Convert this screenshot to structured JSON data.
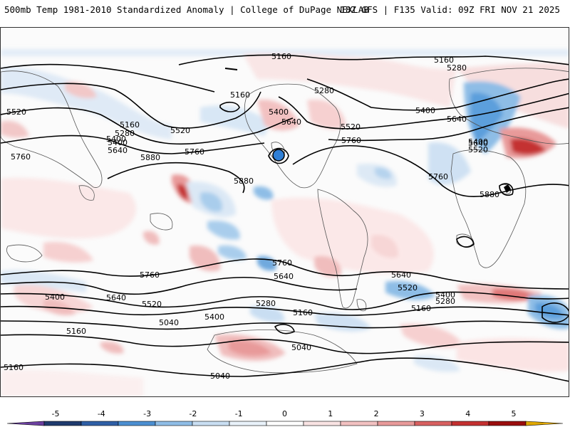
{
  "header": {
    "title_left": "500mb Temp 1981-2010 Standardized Anomaly | College of DuPage NEXLAB",
    "title_right": "18Z GFS | F135 Valid: 09Z FRI NOV 21 2025"
  },
  "contour_labels": [
    "5160",
    "5160",
    "5280",
    "5160",
    "5400",
    "5280",
    "5640",
    "5520",
    "5400",
    "5520",
    "5400",
    "5640",
    "5160",
    "5280",
    "5400",
    "5640",
    "5520",
    "5760",
    "5760",
    "5880",
    "5880",
    "5760",
    "5640",
    "5520",
    "5400",
    "5760",
    "5880",
    "5760",
    "5640",
    "5760",
    "5640",
    "5400",
    "5520",
    "5400",
    "5640",
    "5520",
    "5280",
    "5400",
    "5160",
    "5280",
    "5160",
    "5040",
    "5040",
    "5160",
    "5160",
    "5040"
  ],
  "colorbar": {
    "ticks": [
      "-5",
      "-4",
      "-3",
      "-2",
      "-1",
      "0",
      "1",
      "2",
      "3",
      "4",
      "5"
    ],
    "colors": [
      "#6b3fa0",
      "#1f3a6e",
      "#2f5fa6",
      "#4b8fd1",
      "#8fbde6",
      "#c9def2",
      "#e9f2fa",
      "#ffffff",
      "#f9e3e3",
      "#f2c1c1",
      "#e89a9a",
      "#d86060",
      "#c43030",
      "#9a0d0d",
      "#e0a800"
    ]
  }
}
